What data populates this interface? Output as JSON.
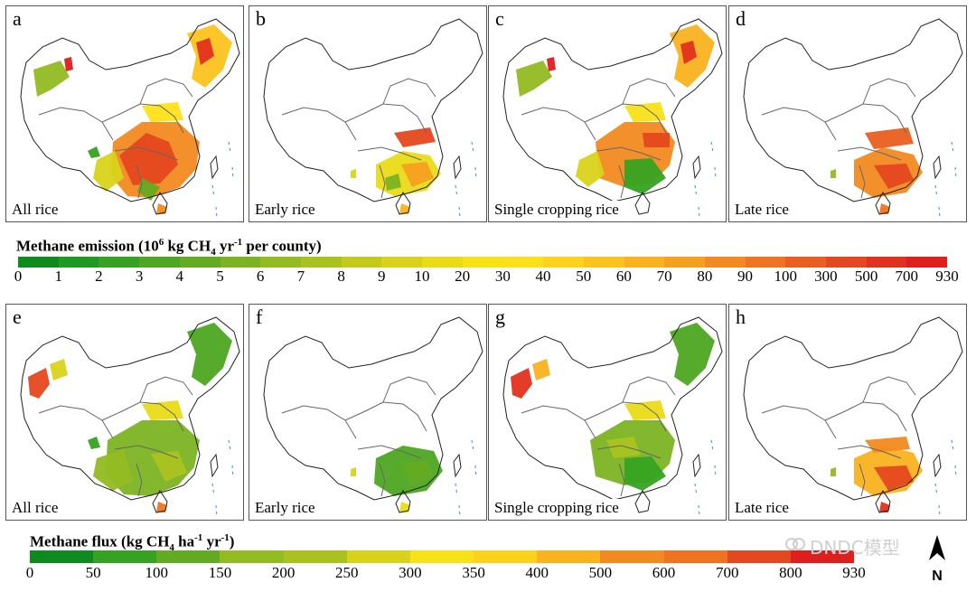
{
  "panels": [
    {
      "letter": "a",
      "caption": "All rice",
      "fill": "emission_all"
    },
    {
      "letter": "b",
      "caption": "Early rice",
      "fill": "emission_early"
    },
    {
      "letter": "c",
      "caption": "Single cropping rice",
      "fill": "emission_single"
    },
    {
      "letter": "d",
      "caption": "Late rice",
      "fill": "emission_late"
    },
    {
      "letter": "e",
      "caption": "All rice",
      "fill": "flux_all"
    },
    {
      "letter": "f",
      "caption": "Early rice",
      "fill": "flux_early"
    },
    {
      "letter": "g",
      "caption": "Single cropping rice",
      "fill": "flux_single"
    },
    {
      "letter": "h",
      "caption": "Late rice",
      "fill": "flux_late"
    }
  ],
  "legend1": {
    "title_a": "Methane emission (10",
    "title_sup": "6",
    "title_b": " kg CH",
    "title_sub": "4",
    "title_c": " yr",
    "title_sup2": "-1",
    "title_d": " per county)",
    "ticks": [
      "0",
      "1",
      "2",
      "3",
      "4",
      "5",
      "6",
      "7",
      "8",
      "9",
      "10",
      "20",
      "30",
      "40",
      "50",
      "60",
      "70",
      "80",
      "90",
      "100",
      "300",
      "500",
      "700",
      "930"
    ]
  },
  "legend2": {
    "title_a": "Methane flux (kg CH",
    "title_sub": "4",
    "title_b": " ha",
    "title_sup": "-1",
    "title_c": " yr",
    "title_sup2": "-1",
    "title_d": ")",
    "ticks": [
      "0",
      "50",
      "100",
      "150",
      "200",
      "250",
      "300",
      "350",
      "400",
      "500",
      "600",
      "700",
      "800",
      "930"
    ]
  },
  "colors": {
    "scale": [
      "#0f8a1e",
      "#1f9a20",
      "#35a321",
      "#4ea621",
      "#63ab22",
      "#7bb323",
      "#93bb22",
      "#aac21f",
      "#c2cb1b",
      "#d8d31a",
      "#eadb17",
      "#f7e218",
      "#fde01a",
      "#fdd21c",
      "#fcc21e",
      "#fab21f",
      "#f79f21",
      "#f38a21",
      "#ef7421",
      "#ea5e20",
      "#e5481f",
      "#e1321e",
      "#de1f1d"
    ]
  },
  "watermark": "DNDC模型",
  "north_label": "N"
}
